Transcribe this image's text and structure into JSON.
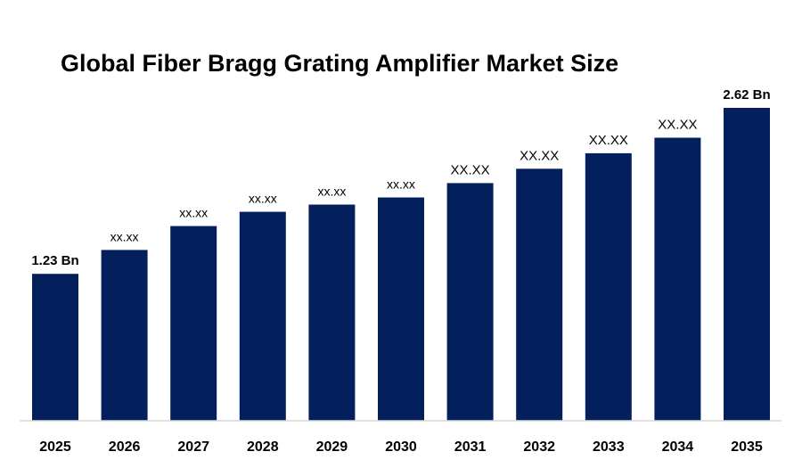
{
  "chart_data": {
    "type": "bar",
    "title": "Global Fiber Bragg Grating Amplifier Market Size",
    "xlabel": "",
    "ylabel": "",
    "categories": [
      "2025",
      "2026",
      "2027",
      "2028",
      "2029",
      "2030",
      "2031",
      "2032",
      "2033",
      "2034",
      "2035"
    ],
    "values": [
      1.23,
      1.43,
      1.63,
      1.75,
      1.81,
      1.87,
      1.99,
      2.11,
      2.24,
      2.37,
      2.62
    ],
    "data_labels": [
      "1.23 Bn",
      "xx.xx",
      "xx.xx",
      "xx.xx",
      "xx.xx",
      "xx.xx",
      "XX.XX",
      "XX.XX",
      "XX.XX",
      "XX.XX",
      "2.62 Bn"
    ],
    "unit": "Bn",
    "ylim": [
      0,
      2.62
    ],
    "bar_color": "#03205C",
    "axis_color": "#D9D9D9",
    "grid": false,
    "legend": "none"
  }
}
